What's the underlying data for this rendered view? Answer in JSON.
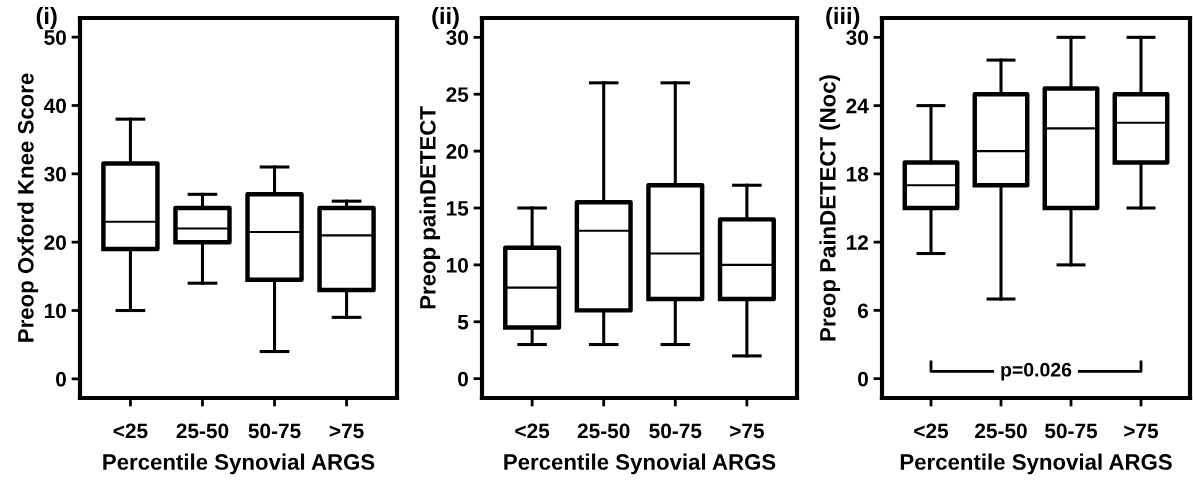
{
  "chart_data": [
    {
      "type": "box",
      "title": "(i)",
      "ylabel": "Preop Oxford Knee Score",
      "xlabel": "Percentile Synovial ARGS",
      "categories": [
        "<25",
        "25-50",
        "50-75",
        ">75"
      ],
      "ylim": [
        -2.8,
        52.8
      ],
      "yticks": [
        0,
        10,
        20,
        30,
        40,
        50
      ],
      "grid": false,
      "boxes": [
        {
          "low": 10,
          "q1": 19,
          "median": 23,
          "q3": 31.5,
          "high": 38
        },
        {
          "low": 14,
          "q1": 20,
          "median": 22,
          "q3": 25,
          "high": 27
        },
        {
          "low": 4,
          "q1": 14.5,
          "median": 21.5,
          "q3": 27,
          "high": 31
        },
        {
          "low": 9,
          "q1": 13,
          "median": 21,
          "q3": 25,
          "high": 26
        }
      ]
    },
    {
      "type": "box",
      "title": "(ii)",
      "ylabel": "Preop painDETECT",
      "xlabel": "Percentile Synovial ARGS",
      "categories": [
        "<25",
        "25-50",
        "50-75",
        ">75"
      ],
      "ylim": [
        -1.7,
        31.7
      ],
      "yticks": [
        0,
        5,
        10,
        15,
        20,
        25,
        30
      ],
      "grid": false,
      "boxes": [
        {
          "low": 3,
          "q1": 4.5,
          "median": 8,
          "q3": 11.5,
          "high": 15
        },
        {
          "low": 3,
          "q1": 6,
          "median": 13,
          "q3": 15.5,
          "high": 26
        },
        {
          "low": 3,
          "q1": 7,
          "median": 11,
          "q3": 17,
          "high": 26
        },
        {
          "low": 2,
          "q1": 7,
          "median": 10,
          "q3": 14,
          "high": 17
        }
      ]
    },
    {
      "type": "box",
      "title": "(iii)",
      "ylabel": "Preop PainDETECT (Noc)",
      "xlabel": "Percentile Synovial ARGS",
      "categories": [
        "<25",
        "25-50",
        "50-75",
        ">75"
      ],
      "ylim": [
        -1.7,
        31.7
      ],
      "yticks": [
        0,
        6,
        12,
        18,
        24,
        30
      ],
      "grid": false,
      "annotations": [
        "p=0.026"
      ],
      "boxes": [
        {
          "low": 11,
          "q1": 15,
          "median": 17,
          "q3": 19,
          "high": 24
        },
        {
          "low": 7,
          "q1": 17,
          "median": 20,
          "q3": 25,
          "high": 28
        },
        {
          "low": 10,
          "q1": 15,
          "median": 22,
          "q3": 25.5,
          "high": 30
        },
        {
          "low": 15,
          "q1": 19,
          "median": 22.5,
          "q3": 25,
          "high": 30
        }
      ]
    }
  ]
}
